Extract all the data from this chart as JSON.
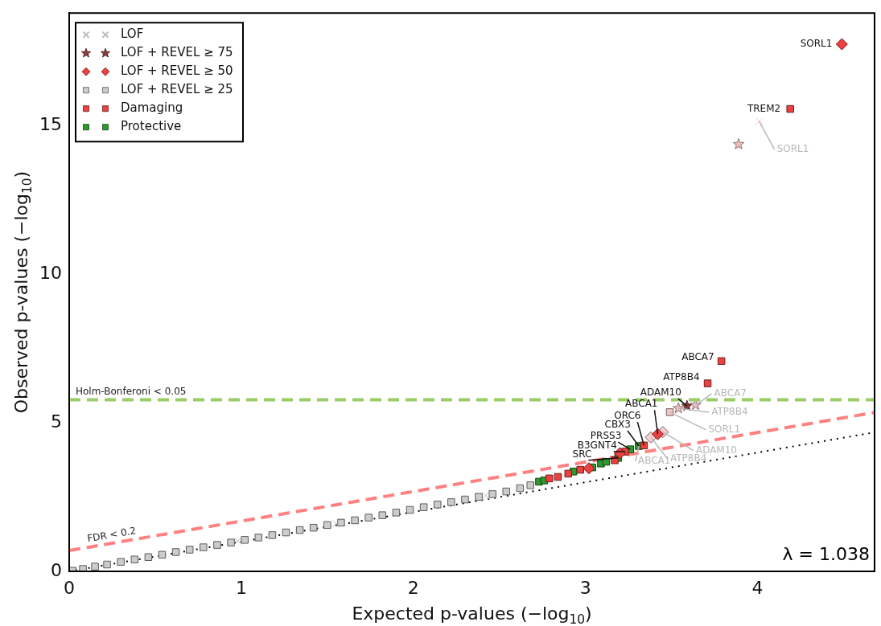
{
  "chart_data": {
    "type": "scatter",
    "xlabel": "Expected p-values (−log$_{10}$)",
    "ylabel": "Observed p-values (−log$_{10}$)",
    "xlim": [
      0,
      4.68
    ],
    "xticks": [
      0,
      1,
      2,
      3,
      4
    ],
    "ylim": [
      0,
      18.8
    ],
    "yticks": [
      0,
      5,
      10,
      15
    ],
    "legend": "top left",
    "series": [
      {
        "type": "line",
        "line_style": "dashed",
        "marker": "none",
        "color": "#ff8080",
        "x": [
          0,
          4.68
        ],
        "values": [
          0.7,
          5.35
        ]
      },
      {
        "type": "line",
        "line_style": "dotted",
        "marker": "none",
        "color": "#000000",
        "x": [
          0,
          4.68
        ],
        "values": [
          0,
          4.68
        ]
      },
      {
        "name": "LOF",
        "marker": "cross",
        "color": "#bbbbbb",
        "x": [
          0.98,
          1.55,
          2.42
        ],
        "values": [
          1.02,
          1.6,
          2.55
        ]
      },
      {
        "name": "LOF + REVEL ≥ 75",
        "marker": "star",
        "color": "#8b3a3a",
        "x": [
          3.59
        ],
        "values": [
          5.57
        ]
      },
      {
        "name": "LOF + REVEL ≥ 50",
        "marker": "diamond",
        "color": "#ee4040",
        "x": [
          4.49,
          3.42,
          3.2,
          3.02
        ],
        "values": [
          17.75,
          4.62,
          3.98,
          3.47
        ]
      },
      {
        "name": "LOF + REVEL ≥ 25",
        "marker": "square",
        "color": "#cccccc",
        "x": [
          0.02,
          0.08,
          0.15,
          0.22,
          0.3,
          0.38,
          0.46,
          0.54,
          0.62,
          0.7,
          0.78,
          0.86,
          0.94,
          1.02,
          1.1,
          1.18,
          1.26,
          1.34,
          1.42,
          1.5,
          1.58,
          1.66,
          1.74,
          1.82,
          1.9,
          1.98,
          2.06,
          2.14,
          2.22,
          2.3,
          2.38,
          2.46,
          2.54,
          2.62,
          2.68
        ],
        "values": [
          0.02,
          0.08,
          0.16,
          0.23,
          0.32,
          0.4,
          0.48,
          0.56,
          0.65,
          0.73,
          0.81,
          0.89,
          0.97,
          1.06,
          1.14,
          1.22,
          1.31,
          1.39,
          1.47,
          1.56,
          1.64,
          1.72,
          1.81,
          1.89,
          1.98,
          2.07,
          2.16,
          2.25,
          2.33,
          2.42,
          2.51,
          2.6,
          2.69,
          2.8,
          2.9
        ]
      },
      {
        "name": "Damaging",
        "marker": "square",
        "color": "#ee4040",
        "x": [
          2.79,
          2.84,
          2.9,
          2.97,
          3.17,
          3.23,
          3.34,
          3.71,
          3.79,
          4.19
        ],
        "values": [
          3.13,
          3.18,
          3.29,
          3.42,
          3.74,
          4.03,
          4.24,
          6.33,
          7.08,
          15.57
        ]
      },
      {
        "name": "Protective",
        "marker": "square",
        "color": "#2e9a2e",
        "x": [
          2.73,
          2.76,
          2.93,
          3.04,
          3.09,
          3.12,
          3.19,
          3.26,
          3.31
        ],
        "values": [
          3.02,
          3.06,
          3.36,
          3.5,
          3.63,
          3.69,
          3.82,
          4.11,
          4.22
        ]
      },
      {
        "marker": "cross",
        "color": "#f5c6c6",
        "x": [
          4.01
        ],
        "values": [
          15.15
        ]
      },
      {
        "marker": "star",
        "color": "#f0c0c0",
        "x": [
          3.89,
          3.54,
          3.64
        ],
        "values": [
          14.38,
          5.49,
          5.6
        ]
      },
      {
        "marker": "diamond",
        "color": "#f8d0d0",
        "x": [
          3.38,
          3.45
        ],
        "values": [
          4.51,
          4.69
        ]
      },
      {
        "marker": "square",
        "color": "#f8c8c8",
        "x": [
          3.49
        ],
        "values": [
          5.36
        ]
      }
    ],
    "ref_lines": [
      {
        "axis": "y",
        "value": 5.78,
        "label": "Holm-Bonferoni < 0.05",
        "color": "#99cc66",
        "line_style": "dashed"
      }
    ],
    "annotations": [
      {
        "text": "SORL1",
        "x": 4.49,
        "y": 17.75
      },
      {
        "text": "TREM2",
        "x": 4.19,
        "y": 15.57
      },
      {
        "text": "SORL1",
        "x": 4.01,
        "y": 15.15
      },
      {
        "text": "ABCA7",
        "x": 3.79,
        "y": 7.08
      },
      {
        "text": "ATP8B4",
        "x": 3.71,
        "y": 6.33
      },
      {
        "text": "ADAM10",
        "x": 3.59,
        "y": 5.57
      },
      {
        "text": "ABCA7",
        "x": 3.64,
        "y": 5.6
      },
      {
        "text": "ATP8B4",
        "x": 3.54,
        "y": 5.49
      },
      {
        "text": "SORL1",
        "x": 3.49,
        "y": 5.36
      },
      {
        "text": "ABCA1",
        "x": 3.42,
        "y": 4.62
      },
      {
        "text": "ADAM10",
        "x": 3.45,
        "y": 4.69
      },
      {
        "text": "ATP8B4",
        "x": 3.38,
        "y": 4.51
      },
      {
        "text": "ORC6",
        "x": 3.34,
        "y": 4.24
      },
      {
        "text": "CBX3",
        "x": 3.31,
        "y": 4.22
      },
      {
        "text": "PRSS3",
        "x": 3.26,
        "y": 4.11
      },
      {
        "text": "B3GNT4",
        "x": 3.23,
        "y": 4.03
      },
      {
        "text": "SRC",
        "x": 3.19,
        "y": 3.82
      },
      {
        "text": "ABCA1",
        "x": 3.31,
        "y": 4.22
      },
      {
        "text": "FDR < 0.2",
        "x": 0.05,
        "y": 0.75
      },
      "λ = 1.038"
    ]
  }
}
